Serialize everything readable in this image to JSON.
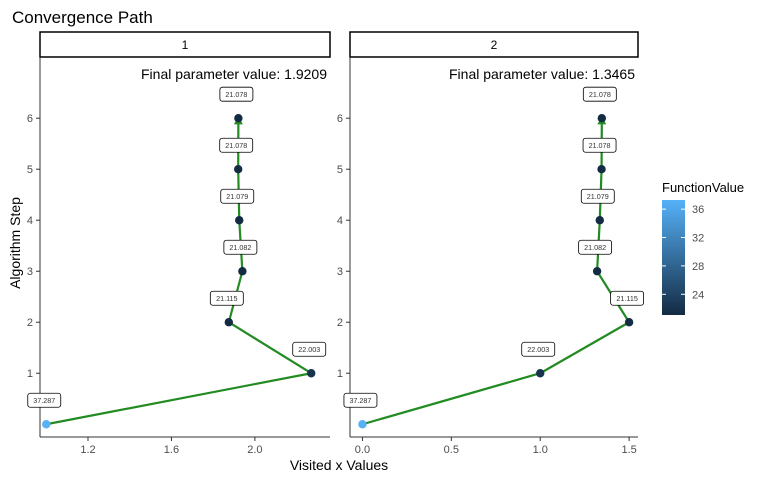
{
  "chart_data": {
    "type": "line",
    "title": "Convergence Path",
    "xlabel": "Visited x Values",
    "ylabel": "Algorithm Step",
    "colors": {
      "path": "#228B22",
      "gradient_low": "#132B43",
      "gradient_high": "#56B1F7",
      "text": "#000000",
      "tick_text": "#4d4d4d",
      "axis": "#333333"
    },
    "legend": {
      "title": "FunctionValue",
      "ticks": [
        36,
        32,
        28,
        24
      ],
      "range": [
        21.078,
        37.287
      ],
      "placement": "right"
    },
    "panels": [
      {
        "strip": "1",
        "annotation": "Final parameter value: 1.9209",
        "xlim": [
          0.97,
          2.36
        ],
        "ylim": [
          -0.25,
          7.2
        ],
        "x_ticks": [
          1.2,
          1.6,
          2.0
        ],
        "x_tick_labels": [
          "1.2",
          "1.6",
          "2.0"
        ],
        "y_ticks": [
          1,
          2,
          3,
          4,
          5,
          6
        ],
        "y_tick_labels": [
          "1",
          "2",
          "3",
          "4",
          "5",
          "6"
        ],
        "points": [
          {
            "x": 1.0,
            "y": 0,
            "value": 37.287,
            "label": "37.287"
          },
          {
            "x": 2.27,
            "y": 1,
            "value": 22.003,
            "label": "22.003"
          },
          {
            "x": 1.875,
            "y": 2,
            "value": 21.115,
            "label": "21.115"
          },
          {
            "x": 1.94,
            "y": 3,
            "value": 21.082,
            "label": "21.082"
          },
          {
            "x": 1.925,
            "y": 4,
            "value": 21.079,
            "label": "21.079"
          },
          {
            "x": 1.92,
            "y": 5,
            "value": 21.078,
            "label": "21.078"
          },
          {
            "x": 1.9209,
            "y": 6,
            "value": 21.078,
            "label": "21.078"
          }
        ]
      },
      {
        "strip": "2",
        "annotation": "Final parameter value: 1.3465",
        "xlim": [
          -0.07,
          1.55
        ],
        "ylim": [
          -0.25,
          7.2
        ],
        "x_ticks": [
          0.0,
          0.5,
          1.0,
          1.5
        ],
        "x_tick_labels": [
          "0.0",
          "0.5",
          "1.0",
          "1.5"
        ],
        "y_ticks": [
          1,
          2,
          3,
          4,
          5,
          6
        ],
        "y_tick_labels": [
          "1",
          "2",
          "3",
          "4",
          "5",
          "6"
        ],
        "points": [
          {
            "x": 0.0,
            "y": 0,
            "value": 37.287,
            "label": "37.287"
          },
          {
            "x": 1.0,
            "y": 1,
            "value": 22.003,
            "label": "22.003"
          },
          {
            "x": 1.5,
            "y": 2,
            "value": 21.115,
            "label": "21.115"
          },
          {
            "x": 1.32,
            "y": 3,
            "value": 21.082,
            "label": "21.082"
          },
          {
            "x": 1.335,
            "y": 4,
            "value": 21.079,
            "label": "21.079"
          },
          {
            "x": 1.345,
            "y": 5,
            "value": 21.078,
            "label": "21.078"
          },
          {
            "x": 1.3465,
            "y": 6,
            "value": 21.078,
            "label": "21.078"
          }
        ]
      }
    ]
  }
}
